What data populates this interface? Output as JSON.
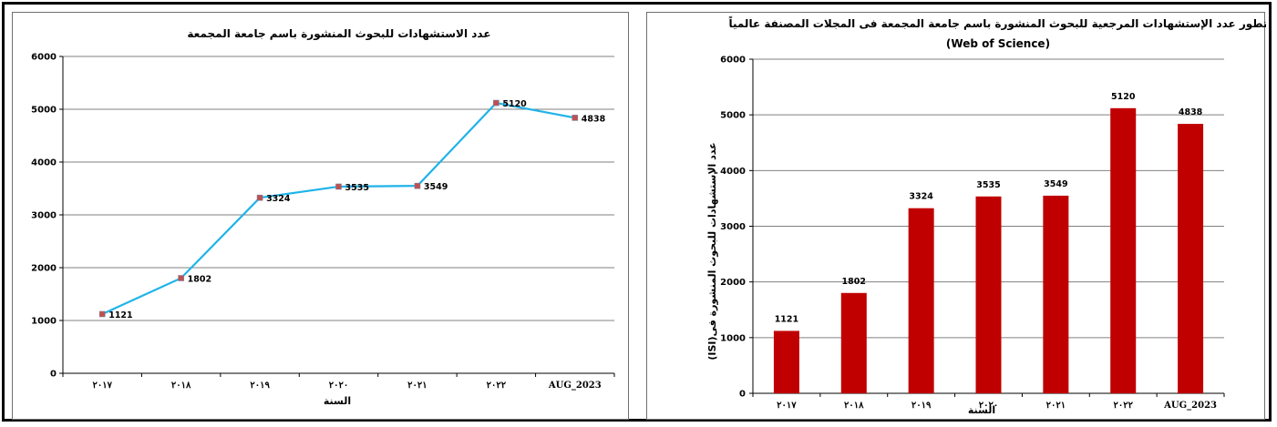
{
  "chart_data": [
    {
      "type": "line",
      "title": "عدد الاستشهادات للبحوث المنشورة باسم جامعة المجمعة",
      "xlabel": "السنة",
      "ylabel": "",
      "categories": [
        "٢٠١٧",
        "٢٠١٨",
        "٢٠١٩",
        "٢٠٢٠",
        "٢٠٢١",
        "٢٠٢٢",
        "AUG_2023"
      ],
      "values": [
        1121,
        1802,
        3324,
        3535,
        3549,
        5120,
        4838
      ],
      "data_labels": [
        "1121",
        "1802",
        "3324",
        "3535",
        "3549",
        "5120",
        "4838"
      ],
      "yticks": [
        "0",
        "1000",
        "2000",
        "3000",
        "4000",
        "5000",
        "6000"
      ],
      "ylim": [
        0,
        6000
      ],
      "grid": true,
      "line_color": "#1fb3e8",
      "marker_color": "#c0504d"
    },
    {
      "type": "bar",
      "title": "تطور عدد الإستشهادات المرجعية للبحوث المنشورة باسم جامعة المجمعة فى المجلات المصنفة عالمياً",
      "subtitle": "(Web of Science)",
      "xlabel": "السنة",
      "ylabel": "عدد الإستشهادات للبحوث المنشورة فى(ISI)",
      "categories": [
        "٢٠١٧",
        "٢٠١٨",
        "٢٠١٩",
        "٢٠٢٠",
        "٢٠٢١",
        "٢٠٢٢",
        "AUG_2023"
      ],
      "values": [
        1121,
        1802,
        3324,
        3535,
        3549,
        5120,
        4838
      ],
      "data_labels": [
        "1121",
        "1802",
        "3324",
        "3535",
        "3549",
        "5120",
        "4838"
      ],
      "yticks": [
        "0",
        "1000",
        "2000",
        "3000",
        "4000",
        "5000",
        "6000"
      ],
      "ylim": [
        0,
        6000
      ],
      "grid": true,
      "bar_color": "#c00000"
    }
  ]
}
